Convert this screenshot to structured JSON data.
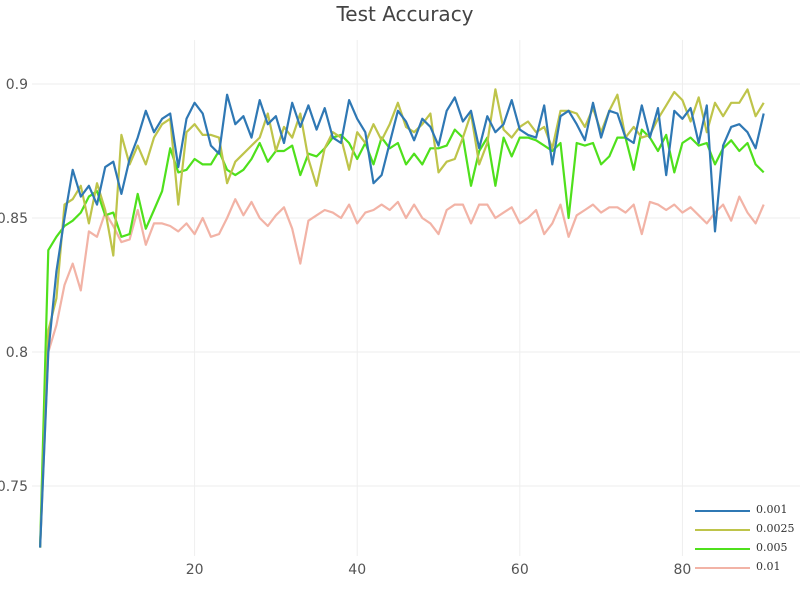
{
  "chart_data": {
    "type": "line",
    "title": "Test Accuracy",
    "xlabel": "",
    "ylabel": "",
    "xlim": [
      0,
      92
    ],
    "ylim": [
      0.725,
      0.91
    ],
    "xticks": [
      20,
      40,
      60,
      80
    ],
    "yticks": [
      0.75,
      0.8,
      0.85,
      0.9
    ],
    "xtick_labels": [
      "20",
      "40",
      "60",
      "80"
    ],
    "ytick_labels": [
      "0.75",
      "0.8",
      "0.85",
      "0.9"
    ],
    "grid": true,
    "legend_position": "bottom-right",
    "x_start": 1,
    "series": [
      {
        "name": "0.001",
        "color": "#2f78b4",
        "values": [
          0.727,
          0.8,
          0.83,
          0.85,
          0.868,
          0.858,
          0.862,
          0.855,
          0.869,
          0.871,
          0.859,
          0.872,
          0.88,
          0.89,
          0.882,
          0.887,
          0.889,
          0.869,
          0.887,
          0.893,
          0.889,
          0.877,
          0.874,
          0.896,
          0.885,
          0.888,
          0.88,
          0.894,
          0.885,
          0.888,
          0.878,
          0.893,
          0.884,
          0.892,
          0.883,
          0.891,
          0.88,
          0.878,
          0.894,
          0.887,
          0.882,
          0.863,
          0.866,
          0.878,
          0.89,
          0.886,
          0.879,
          0.887,
          0.884,
          0.877,
          0.89,
          0.895,
          0.886,
          0.89,
          0.876,
          0.888,
          0.882,
          0.885,
          0.894,
          0.883,
          0.881,
          0.88,
          0.892,
          0.87,
          0.888,
          0.89,
          0.885,
          0.879,
          0.893,
          0.88,
          0.89,
          0.889,
          0.88,
          0.878,
          0.892,
          0.88,
          0.891,
          0.866,
          0.89,
          0.887,
          0.891,
          0.878,
          0.892,
          0.845,
          0.877,
          0.884,
          0.885,
          0.882,
          0.876,
          0.889
        ]
      },
      {
        "name": "0.0025",
        "color": "#bec44a",
        "values": [
          0.727,
          0.808,
          0.82,
          0.855,
          0.857,
          0.862,
          0.848,
          0.863,
          0.853,
          0.836,
          0.881,
          0.87,
          0.877,
          0.87,
          0.88,
          0.885,
          0.887,
          0.855,
          0.882,
          0.885,
          0.881,
          0.881,
          0.88,
          0.863,
          0.871,
          0.874,
          0.877,
          0.88,
          0.889,
          0.875,
          0.884,
          0.88,
          0.889,
          0.872,
          0.862,
          0.876,
          0.882,
          0.88,
          0.868,
          0.882,
          0.878,
          0.885,
          0.879,
          0.885,
          0.893,
          0.884,
          0.882,
          0.885,
          0.889,
          0.867,
          0.871,
          0.872,
          0.88,
          0.889,
          0.87,
          0.878,
          0.898,
          0.883,
          0.88,
          0.884,
          0.886,
          0.882,
          0.884,
          0.876,
          0.89,
          0.89,
          0.889,
          0.884,
          0.891,
          0.882,
          0.89,
          0.896,
          0.88,
          0.884,
          0.88,
          0.881,
          0.887,
          0.892,
          0.897,
          0.894,
          0.886,
          0.895,
          0.882,
          0.893,
          0.888,
          0.893,
          0.893,
          0.898,
          0.888,
          0.893
        ]
      },
      {
        "name": "0.005",
        "color": "#4fe01c",
        "values": [
          0.727,
          0.838,
          0.843,
          0.847,
          0.849,
          0.852,
          0.858,
          0.86,
          0.851,
          0.852,
          0.843,
          0.844,
          0.859,
          0.846,
          0.853,
          0.86,
          0.876,
          0.867,
          0.868,
          0.872,
          0.87,
          0.87,
          0.875,
          0.868,
          0.866,
          0.868,
          0.872,
          0.878,
          0.871,
          0.875,
          0.875,
          0.877,
          0.866,
          0.874,
          0.873,
          0.876,
          0.88,
          0.881,
          0.878,
          0.872,
          0.878,
          0.87,
          0.88,
          0.876,
          0.878,
          0.87,
          0.874,
          0.87,
          0.876,
          0.876,
          0.877,
          0.883,
          0.88,
          0.862,
          0.875,
          0.88,
          0.862,
          0.88,
          0.873,
          0.88,
          0.88,
          0.879,
          0.877,
          0.875,
          0.878,
          0.85,
          0.878,
          0.877,
          0.878,
          0.87,
          0.873,
          0.88,
          0.88,
          0.868,
          0.883,
          0.88,
          0.875,
          0.881,
          0.867,
          0.878,
          0.88,
          0.877,
          0.878,
          0.87,
          0.876,
          0.879,
          0.875,
          0.878,
          0.87,
          0.867
        ]
      },
      {
        "name": "0.01",
        "color": "#f2b3a6",
        "values": [
          0.727,
          0.8,
          0.81,
          0.825,
          0.833,
          0.823,
          0.845,
          0.843,
          0.852,
          0.847,
          0.841,
          0.842,
          0.853,
          0.84,
          0.848,
          0.848,
          0.847,
          0.845,
          0.848,
          0.844,
          0.85,
          0.843,
          0.844,
          0.85,
          0.857,
          0.851,
          0.856,
          0.85,
          0.847,
          0.851,
          0.854,
          0.846,
          0.833,
          0.849,
          0.851,
          0.853,
          0.852,
          0.85,
          0.855,
          0.848,
          0.852,
          0.853,
          0.855,
          0.853,
          0.856,
          0.85,
          0.855,
          0.85,
          0.848,
          0.844,
          0.853,
          0.855,
          0.855,
          0.848,
          0.855,
          0.855,
          0.85,
          0.852,
          0.854,
          0.848,
          0.85,
          0.853,
          0.844,
          0.848,
          0.855,
          0.843,
          0.851,
          0.853,
          0.855,
          0.852,
          0.854,
          0.854,
          0.852,
          0.855,
          0.844,
          0.856,
          0.855,
          0.853,
          0.855,
          0.852,
          0.854,
          0.851,
          0.848,
          0.852,
          0.855,
          0.849,
          0.858,
          0.852,
          0.848,
          0.855
        ]
      }
    ]
  }
}
